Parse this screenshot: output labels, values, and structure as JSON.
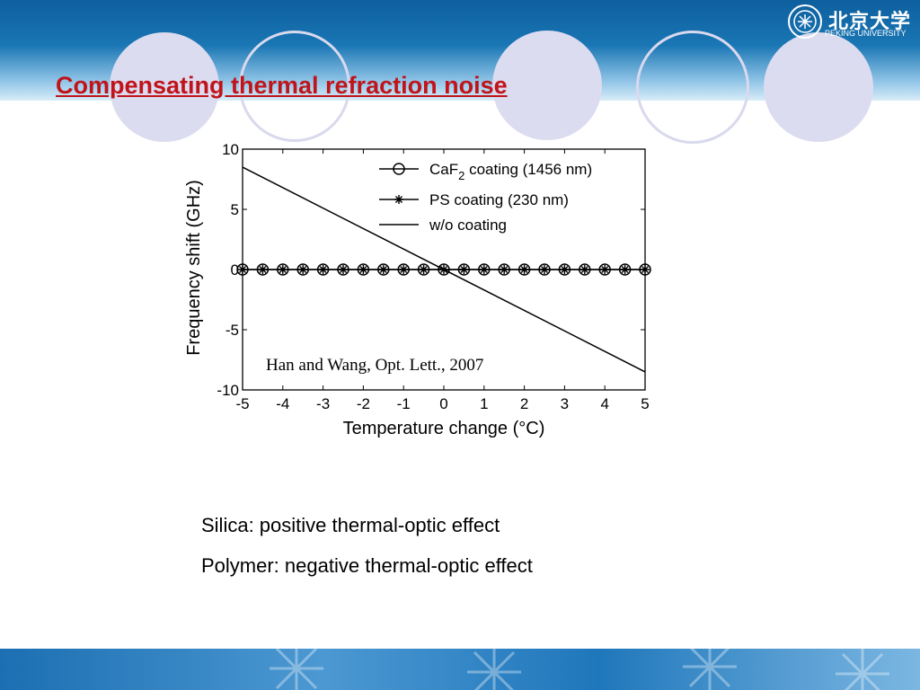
{
  "slide": {
    "title": "Compensating thermal refraction noise",
    "logo_text": "北京大学",
    "logo_subtext": "PEKING UNIVERSITY",
    "notes": [
      "Silica: positive  thermal-optic effect",
      "Polymer: negative thermal-optic effect"
    ],
    "colors": {
      "title": "#c0141a",
      "header": "#0d5f9e",
      "circles": "#dcdcf0"
    }
  },
  "chart_data": {
    "type": "line",
    "xlabel": "Temperature change (°C)",
    "ylabel": "Frequency shift (GHz)",
    "xlim": [
      -5,
      5
    ],
    "ylim": [
      -10,
      10
    ],
    "xticks": [
      -5,
      -4,
      -3,
      -2,
      -1,
      0,
      1,
      2,
      3,
      4,
      5
    ],
    "yticks": [
      10,
      5,
      0,
      -5,
      -10
    ],
    "grid": false,
    "legend_position": "top-right",
    "annotation": "Han and Wang, Opt. Lett., 2007",
    "series": [
      {
        "name": "CaF2 coating (1456 nm)",
        "marker": "circle",
        "x": [
          -5,
          -4.5,
          -4,
          -3.5,
          -3,
          -2.5,
          -2,
          -1.5,
          -1,
          -0.5,
          0,
          0.5,
          1,
          1.5,
          2,
          2.5,
          3,
          3.5,
          4,
          4.5,
          5
        ],
        "y": [
          0,
          0,
          0,
          0,
          0,
          0,
          0,
          0,
          0,
          0,
          0,
          0,
          0,
          0,
          0,
          0,
          0,
          0,
          0,
          0,
          0
        ]
      },
      {
        "name": "PS coating (230  nm)",
        "marker": "star",
        "x": [
          -5,
          -4.5,
          -4,
          -3.5,
          -3,
          -2.5,
          -2,
          -1.5,
          -1,
          -0.5,
          0,
          0.5,
          1,
          1.5,
          2,
          2.5,
          3,
          3.5,
          4,
          4.5,
          5
        ],
        "y": [
          0,
          0,
          0,
          0,
          0,
          0,
          0,
          0,
          0,
          0,
          0,
          0,
          0,
          0,
          0,
          0,
          0,
          0,
          0,
          0,
          0
        ]
      },
      {
        "name": "w/o coating",
        "marker": "none",
        "x": [
          -5,
          5
        ],
        "y": [
          8.5,
          -8.5
        ]
      }
    ]
  }
}
